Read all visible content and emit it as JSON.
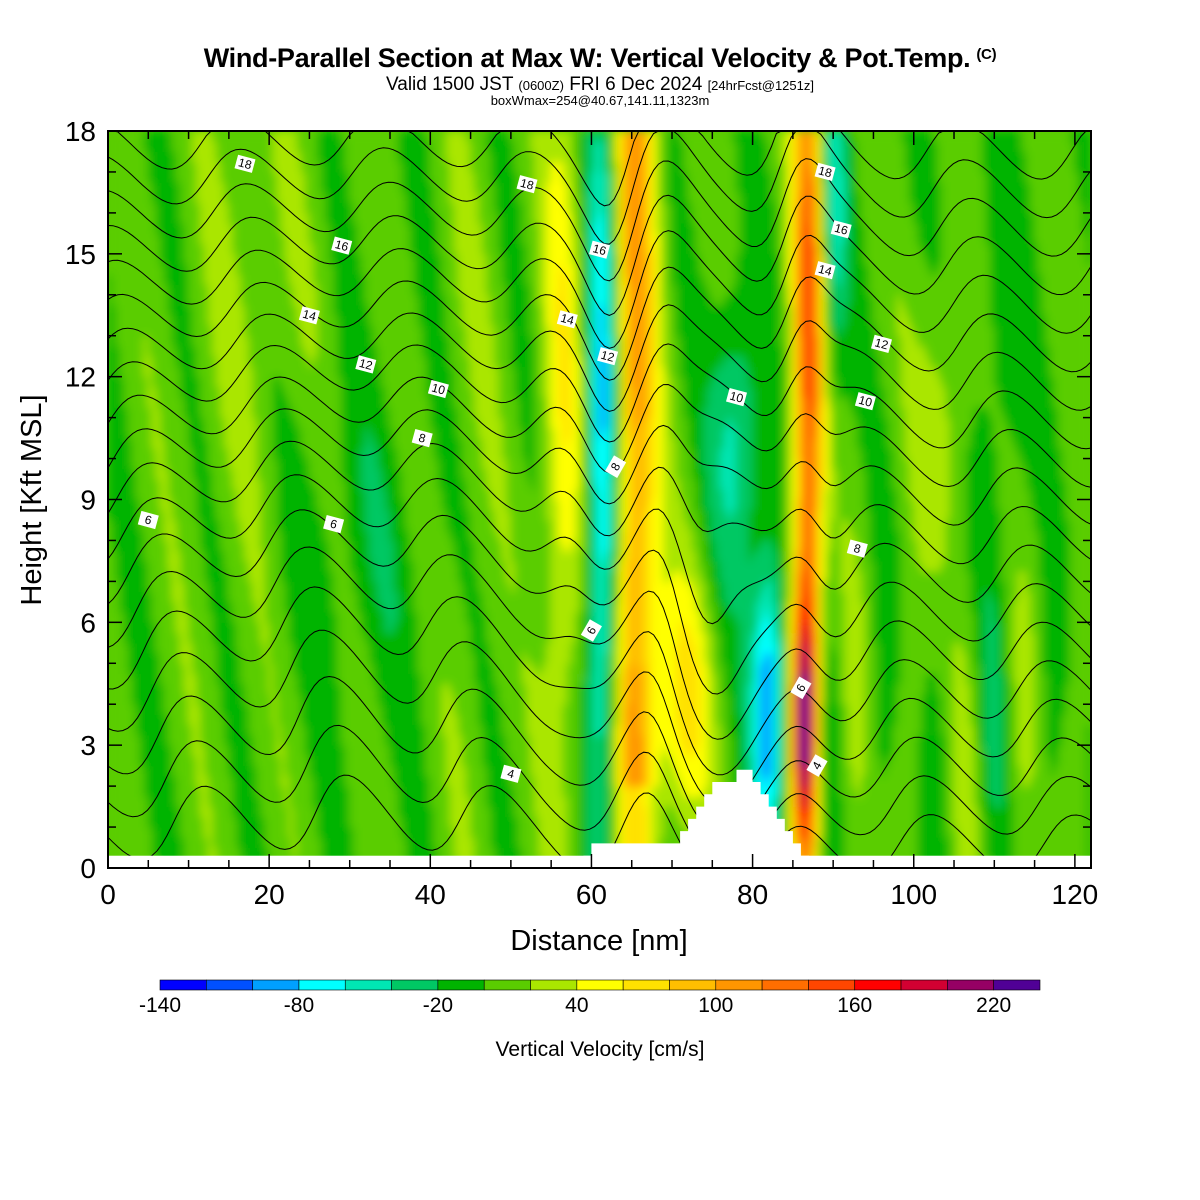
{
  "chart_data": {
    "type": "contour",
    "title": "Wind-Parallel Section at Max W: Vertical Velocity & Pot.Temp.",
    "title_mark": "(C)",
    "subtitle": {
      "prefix": "Valid 1500 JST",
      "zulu": "(0600Z)",
      "date": "FRI 6 Dec 2024",
      "fcst": "[24hrFcst@1251z]"
    },
    "info_line": "boxWmax=254@40.67,141.11,1323m",
    "xlabel": "Distance [nm]",
    "ylabel": "Height [Kft MSL]",
    "xlim": [
      0,
      122
    ],
    "ylim": [
      0,
      18
    ],
    "x_ticks": [
      "0",
      "20",
      "40",
      "60",
      "80",
      "100",
      "120"
    ],
    "y_ticks": [
      "0",
      "3",
      "6",
      "9",
      "12",
      "15",
      "18"
    ],
    "colorbar": {
      "label": "Vertical Velocity [cm/s]",
      "min": -140,
      "max": 240,
      "step": 20,
      "tick_labels": [
        "-140",
        "-80",
        "-20",
        "40",
        "100",
        "160",
        "220"
      ],
      "tick_values": [
        -140,
        -80,
        -20,
        40,
        100,
        160,
        220
      ],
      "colors": [
        "#0000ff",
        "#0050ff",
        "#00a0ff",
        "#00ffff",
        "#00e6b4",
        "#00c864",
        "#00b400",
        "#5acd00",
        "#aae600",
        "#ffff00",
        "#ffe100",
        "#ffbe00",
        "#ff9600",
        "#ff6e00",
        "#ff4600",
        "#ff0000",
        "#d20032",
        "#960064",
        "#500096"
      ]
    },
    "terrain": [
      [
        58,
        0
      ],
      [
        59,
        0
      ],
      [
        59,
        0.3
      ],
      [
        60,
        0.3
      ],
      [
        60,
        0.6
      ],
      [
        70,
        0.6
      ],
      [
        71,
        0.6
      ],
      [
        71,
        0.9
      ],
      [
        72,
        0.9
      ],
      [
        72,
        1.2
      ],
      [
        73,
        1.2
      ],
      [
        73,
        1.5
      ],
      [
        74,
        1.5
      ],
      [
        74,
        1.8
      ],
      [
        75,
        1.8
      ],
      [
        75,
        2.1
      ],
      [
        78,
        2.1
      ],
      [
        78,
        2.4
      ],
      [
        80,
        2.4
      ],
      [
        80,
        2.1
      ],
      [
        81,
        2.1
      ],
      [
        81,
        1.8
      ],
      [
        82,
        1.8
      ],
      [
        82,
        1.5
      ],
      [
        83,
        1.5
      ],
      [
        83,
        1.2
      ],
      [
        84,
        1.2
      ],
      [
        84,
        0.9
      ],
      [
        85,
        0.9
      ],
      [
        85,
        0.6
      ],
      [
        86,
        0.6
      ],
      [
        86,
        0.3
      ],
      [
        87,
        0.3
      ],
      [
        87,
        0
      ]
    ],
    "isentrope_labels": [
      {
        "text": "18",
        "x": 17,
        "y": 17.2
      },
      {
        "text": "18",
        "x": 52,
        "y": 16.7
      },
      {
        "text": "18",
        "x": 89,
        "y": 17.0
      },
      {
        "text": "16",
        "x": 29,
        "y": 15.2
      },
      {
        "text": "16",
        "x": 61,
        "y": 15.1
      },
      {
        "text": "16",
        "x": 91,
        "y": 15.6
      },
      {
        "text": "14",
        "x": 25,
        "y": 13.5
      },
      {
        "text": "14",
        "x": 57,
        "y": 13.4
      },
      {
        "text": "14",
        "x": 89,
        "y": 14.6
      },
      {
        "text": "12",
        "x": 32,
        "y": 12.3
      },
      {
        "text": "12",
        "x": 62,
        "y": 12.5
      },
      {
        "text": "12",
        "x": 96,
        "y": 12.8
      },
      {
        "text": "10",
        "x": 41,
        "y": 11.7
      },
      {
        "text": "10",
        "x": 78,
        "y": 11.5
      },
      {
        "text": "10",
        "x": 94,
        "y": 11.4
      },
      {
        "text": "8",
        "x": 39,
        "y": 10.5
      },
      {
        "text": "8",
        "x": 63,
        "y": 9.8
      },
      {
        "text": "8",
        "x": 93,
        "y": 7.8
      },
      {
        "text": "6",
        "x": 5,
        "y": 8.5
      },
      {
        "text": "6",
        "x": 28,
        "y": 8.4
      },
      {
        "text": "6",
        "x": 60,
        "y": 5.8
      },
      {
        "text": "6",
        "x": 86,
        "y": 4.4
      },
      {
        "text": "4",
        "x": 50,
        "y": 2.3
      },
      {
        "text": "4",
        "x": 88,
        "y": 2.5
      }
    ]
  }
}
